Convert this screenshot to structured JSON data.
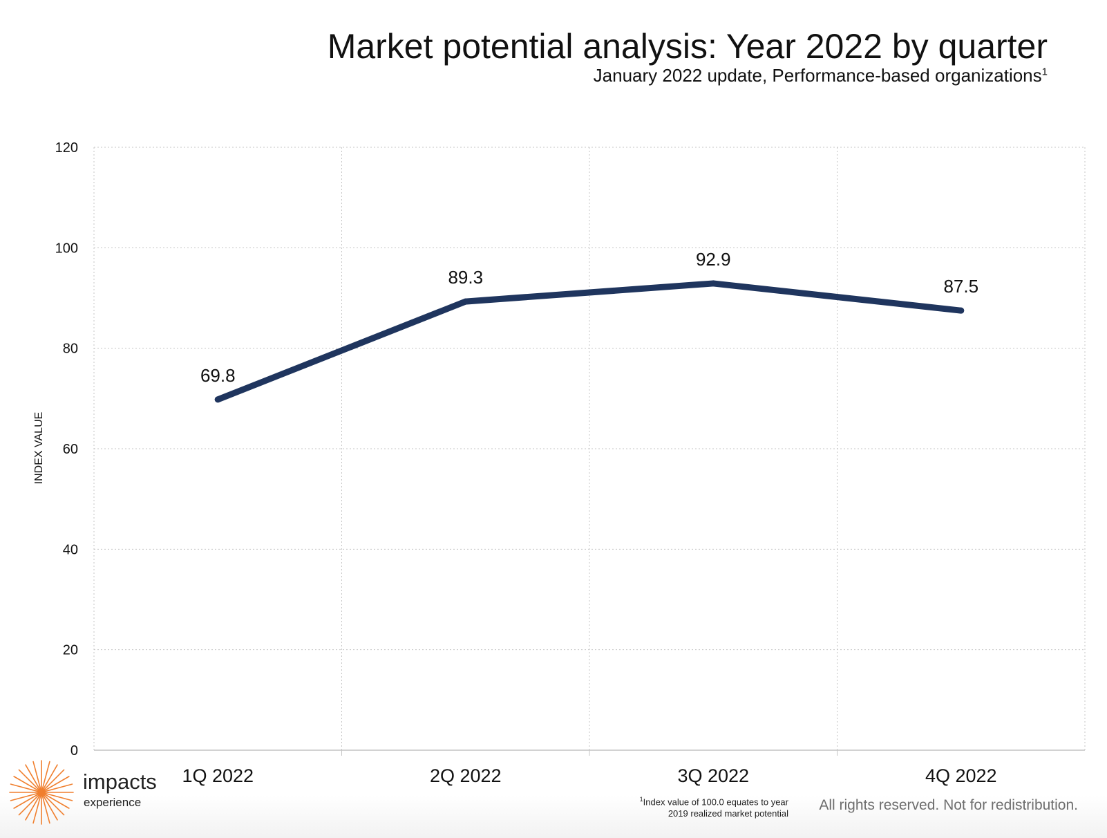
{
  "header": {
    "title": "Market potential analysis: Year 2022 by quarter",
    "subtitle": "January 2022 update, Performance-based organizations",
    "subtitle_marker": "1"
  },
  "chart_data": {
    "type": "line",
    "title": "Market potential analysis: Year 2022 by quarter",
    "subtitle": "January 2022 update, Performance-based organizations",
    "xlabel": "",
    "ylabel": "INDEX VALUE",
    "categories": [
      "1Q 2022",
      "2Q 2022",
      "3Q 2022",
      "4Q 2022"
    ],
    "series": [
      {
        "values": [
          69.8,
          89.3,
          92.9,
          87.5
        ],
        "color": "#1f355e"
      }
    ],
    "data_labels": [
      "69.8",
      "89.3",
      "92.9",
      "87.5"
    ],
    "ylim": [
      0,
      120
    ],
    "yticks": [
      0,
      20,
      40,
      60,
      80,
      100,
      120
    ],
    "grid": true,
    "grid_style": "dotted",
    "legend": "none"
  },
  "logo": {
    "name": "impacts",
    "tagline": "experience",
    "icon": "starburst-icon",
    "color": "#f07f2e"
  },
  "footnote": {
    "marker": "1",
    "line1": "Index value of 100.0 equates to year",
    "line2": "2019 realized market potential"
  },
  "rights": "All rights reserved. Not for redistribution."
}
